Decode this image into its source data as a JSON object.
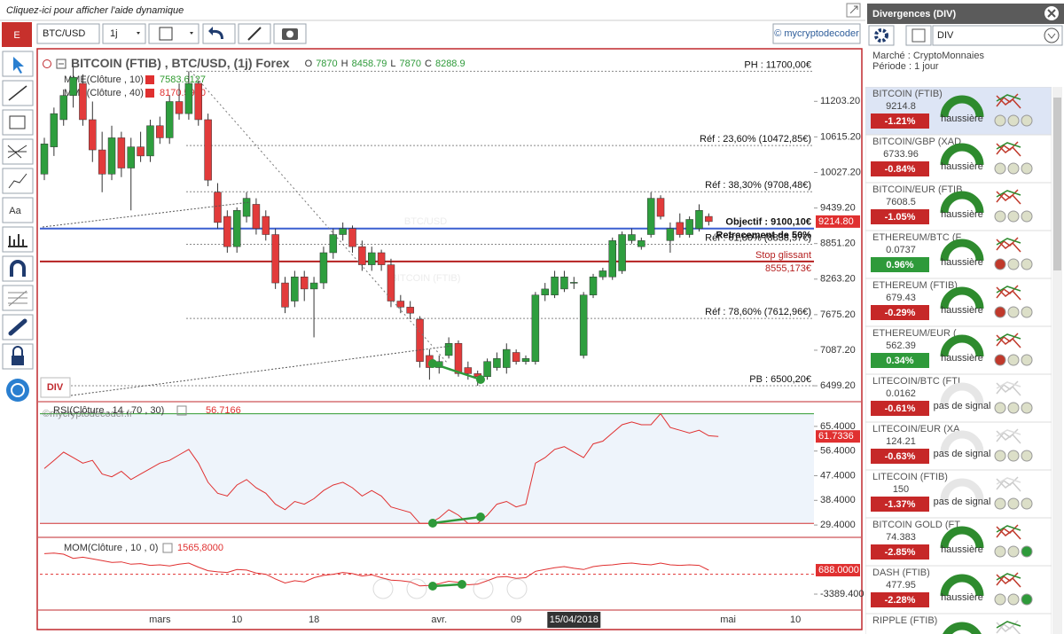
{
  "help_link": "Cliquez-ici pour afficher l'aide dynamique",
  "toolbar": {
    "logo": "E",
    "symbol": "BTC/USD",
    "period": "1j",
    "brand": "© mycryptodecoder"
  },
  "left_tools": {
    "text_tool": "Aa"
  },
  "price_chart": {
    "title": "BITCOIN (FTIB) , BTC/USD, (1j) Forex",
    "ohlc": [
      "O",
      "7870",
      "H",
      "8458.79",
      "L",
      "7870",
      "C",
      "8288.9"
    ],
    "indicators": [
      {
        "name": "MME(Clôture , 10)",
        "value": "7583.6127",
        "color": "#2e9a2e"
      },
      {
        "name": "MME(Clôture , 40)",
        "value": "8170.5900",
        "color": "#e03030"
      }
    ],
    "watermark": "BTC/USD",
    "watermark_sub": "BITCOIN (FTIB)",
    "copyright": "©mycryptodecoder.fr",
    "div_button": "DIV",
    "categories": [
      null,
      null,
      null,
      null,
      null,
      null,
      null,
      null,
      null,
      null,
      null,
      null,
      "mars",
      null,
      null,
      null,
      null,
      null,
      null,
      null,
      "10",
      null,
      null,
      null,
      null,
      null,
      null,
      null,
      "18",
      null,
      null,
      null,
      null,
      null,
      null,
      null,
      null,
      null,
      null,
      null,
      null,
      "avr.",
      null,
      null,
      null,
      null,
      null,
      null,
      null,
      "09",
      null,
      null,
      null,
      null,
      null,
      "15/04/2018",
      null,
      null,
      null,
      null,
      null,
      null,
      null,
      null,
      null,
      null,
      null,
      null,
      null,
      null,
      null,
      "mai",
      null,
      null,
      null,
      null,
      null,
      null,
      "10",
      null,
      null
    ],
    "candles": [
      [
        10000,
        10600,
        9900,
        10500
      ],
      [
        10450,
        11100,
        10300,
        11000
      ],
      [
        10900,
        11400,
        10800,
        11300
      ],
      [
        11300,
        11800,
        11100,
        11600
      ],
      [
        11500,
        11650,
        10800,
        10900
      ],
      [
        10900,
        11200,
        10200,
        10400
      ],
      [
        10400,
        10700,
        9700,
        10000
      ],
      [
        10000,
        10800,
        9900,
        10600
      ],
      [
        10600,
        10700,
        9950,
        10100
      ],
      [
        10100,
        10600,
        9400,
        10450
      ],
      [
        10450,
        10700,
        10200,
        10300
      ],
      [
        10300,
        10900,
        10200,
        10800
      ],
      [
        10800,
        10950,
        10500,
        10600
      ],
      [
        10600,
        11300,
        10500,
        11200
      ],
      [
        11200,
        11500,
        10900,
        11000
      ],
      [
        11000,
        11700,
        10900,
        11500
      ],
      [
        11500,
        11550,
        10800,
        10900
      ],
      [
        10900,
        11000,
        9800,
        9900
      ],
      [
        9700,
        9850,
        9100,
        9200
      ],
      [
        9300,
        9400,
        8700,
        8800
      ],
      [
        8800,
        9450,
        8700,
        9400
      ],
      [
        9300,
        9700,
        9200,
        9600
      ],
      [
        9500,
        9600,
        9000,
        9100
      ],
      [
        9300,
        9400,
        8900,
        9000
      ],
      [
        9000,
        9100,
        8100,
        8200
      ],
      [
        8200,
        8300,
        7700,
        7800
      ],
      [
        7900,
        8400,
        7800,
        8300
      ],
      [
        8300,
        8400,
        7900,
        8100
      ],
      [
        8100,
        8300,
        7300,
        8200
      ],
      [
        8200,
        8800,
        8100,
        8700
      ],
      [
        8700,
        9100,
        8600,
        9000
      ],
      [
        9000,
        9200,
        8900,
        9100
      ],
      [
        9100,
        9150,
        8700,
        8800
      ],
      [
        8800,
        8900,
        8400,
        8500
      ],
      [
        8500,
        8800,
        8400,
        8700
      ],
      [
        8700,
        8750,
        8400,
        8500
      ],
      [
        8500,
        8600,
        7800,
        7900
      ],
      [
        7900,
        8000,
        7700,
        7800
      ],
      [
        7800,
        7900,
        7600,
        7700
      ],
      [
        7600,
        7650,
        6800,
        6900
      ],
      [
        7000,
        7100,
        6600,
        6800
      ],
      [
        6800,
        7000,
        6700,
        6900
      ],
      [
        7000,
        7300,
        6950,
        7200
      ],
      [
        7200,
        7250,
        6650,
        6700
      ],
      [
        6800,
        6900,
        6600,
        6700
      ],
      [
        6700,
        6750,
        6500,
        6650
      ],
      [
        6650,
        6950,
        6600,
        6900
      ],
      [
        6800,
        7050,
        6750,
        6950
      ],
      [
        6800,
        7200,
        6700,
        7100
      ],
      [
        7050,
        7100,
        6850,
        6900
      ],
      [
        6900,
        7000,
        6850,
        6950
      ],
      [
        6900,
        8050,
        6850,
        8000
      ],
      [
        8000,
        8200,
        7900,
        8100
      ],
      [
        8000,
        8400,
        7950,
        8300
      ],
      [
        8100,
        8400,
        8050,
        8300
      ],
      [
        8200,
        8300,
        8100,
        8210
      ],
      [
        7000,
        8050,
        6950,
        8000
      ],
      [
        8000,
        8350,
        7950,
        8300
      ],
      [
        8300,
        8450,
        8250,
        8400
      ],
      [
        8300,
        8950,
        8250,
        8900
      ],
      [
        8400,
        9050,
        8350,
        9000
      ],
      [
        8900,
        9100,
        8850,
        9000
      ],
      [
        8800,
        8950,
        8750,
        8900
      ],
      [
        9000,
        9700,
        8950,
        9600
      ],
      [
        9600,
        9650,
        9250,
        9300
      ],
      [
        8900,
        9200,
        8700,
        9100
      ],
      [
        9200,
        9350,
        8950,
        9000
      ],
      [
        9000,
        9300,
        8950,
        9250
      ],
      [
        9100,
        9500,
        9050,
        9400
      ],
      [
        9300,
        9350,
        9150,
        9214.8
      ],
      null,
      null,
      null,
      null,
      null,
      null,
      null,
      null,
      null,
      null,
      null
    ],
    "up_color": "#2e9e3e",
    "down_color": "#e23b3b",
    "ylim": [
      6280,
      11970
    ],
    "yticks": [
      {
        "value": 6499.2,
        "label": "6499.20"
      },
      {
        "value": 7087.2,
        "label": "7087.20"
      },
      {
        "value": 7675.2,
        "label": "7675.20"
      },
      {
        "value": 8263.2,
        "label": "8263.20"
      },
      {
        "value": 8851.2,
        "label": "8851.20"
      },
      {
        "value": 9439.2,
        "label": "9439.20"
      },
      {
        "value": 10027.2,
        "label": "10027.20"
      },
      {
        "value": 10615.2,
        "label": "10615.20"
      },
      {
        "value": 11203.2,
        "label": "11203.20"
      }
    ],
    "last_price_label": "9214.80",
    "levels": [
      {
        "value": 11700,
        "label": "PH : 11700,00€"
      },
      {
        "value": 10472.85,
        "label": "Réf : 23,60% (10472,85€)"
      },
      {
        "value": 9708.48,
        "label": "Réf : 38,30% (9708,48€)"
      },
      {
        "value": 9100.1,
        "label": "Objectif : 9100,10€",
        "sub": "Retracement de 50%",
        "color": "#3a5fd0"
      },
      {
        "value": 8838.57,
        "label": "Réf : 61,80% (8838,57€)"
      },
      {
        "value": 8555.173,
        "label": "Stop glissant",
        "sub": "8555,173€",
        "color": "#b52020"
      },
      {
        "value": 7612.96,
        "label": "Réf : 78,60% (7612,96€)"
      },
      {
        "value": 6500.2,
        "label": "PB : 6500,20€"
      }
    ]
  },
  "rsi": {
    "title": "RSI(Clôture , 14 , 70 , 30)",
    "value": "56.7166",
    "color": "#e03030",
    "values": [
      50,
      53,
      56,
      54,
      52,
      53,
      48,
      47,
      49,
      46,
      48,
      50,
      52,
      53,
      55,
      57,
      52,
      45,
      41,
      40,
      44,
      46,
      43,
      41,
      37,
      35,
      38,
      37,
      39,
      42,
      44,
      45,
      43,
      40,
      42,
      40,
      36,
      35,
      34,
      30,
      30,
      32,
      35,
      33,
      30,
      30,
      33,
      37,
      38,
      36,
      37,
      52,
      54,
      57,
      58,
      56,
      54,
      59,
      60,
      63,
      66,
      67,
      66,
      66,
      70,
      65,
      64,
      63,
      64,
      62,
      61.7336,
      null,
      null,
      null,
      null,
      null,
      null,
      null,
      null,
      null,
      null
    ],
    "ylim": [
      26.2,
      71.5
    ],
    "yticks": [
      {
        "value": 29.4,
        "label": "29.4000"
      },
      {
        "value": 38.4,
        "label": "38.4000"
      },
      {
        "value": 47.4,
        "label": "47.4000"
      },
      {
        "value": 56.4,
        "label": "56.4000"
      },
      {
        "value": 65.4,
        "label": "65.4000"
      }
    ],
    "levels": [
      {
        "value": 70,
        "color": "#2e9a2e"
      },
      {
        "value": 30,
        "color": "#d03030"
      }
    ]
  },
  "mom": {
    "title": "MOM(Clôture , 10 , 0)",
    "value": "1565,8000",
    "color": "#e03030",
    "values": [
      3500,
      3600,
      3400,
      2700,
      2900,
      2600,
      2300,
      2000,
      2100,
      1700,
      1800,
      1500,
      1600,
      1400,
      1700,
      1900,
      1200,
      600,
      400,
      300,
      800,
      700,
      200,
      0,
      -800,
      -1500,
      -1100,
      -1300,
      -600,
      -200,
      0,
      300,
      100,
      -300,
      -100,
      -600,
      -1000,
      -1100,
      -1300,
      -2000,
      -1900,
      -1600,
      -1200,
      -1400,
      -1800,
      -1700,
      -1100,
      -500,
      -400,
      -700,
      -600,
      500,
      800,
      1100,
      1300,
      1000,
      800,
      1300,
      1500,
      1600,
      1800,
      1900,
      1700,
      1600,
      1900,
      1600,
      1500,
      1600,
      1500,
      688,
      null,
      null,
      null,
      null,
      null,
      null,
      null,
      null,
      null,
      null,
      null
    ],
    "last_label": "688.0000",
    "ylim": [
      -5650,
      5370
    ],
    "yticks": [
      {
        "value": -3389.4,
        "label": "-3389.400"
      }
    ]
  },
  "side_panel": {
    "title": "Divergences (DIV)",
    "search": "DIV",
    "market": "Marché : CryptoMonnaies",
    "period": "Période : 1 jour",
    "items": [
      {
        "name": "BITCOIN (FTIB)",
        "price": "9214.8",
        "change": "-1.21%",
        "change_color": "#c62828",
        "status": "haussière",
        "gauge_color": "#2e8b2e",
        "dots": [
          "#dcdfc8",
          "#dcdfc8",
          "#dcdfc8"
        ]
      },
      {
        "name": "BITCOIN/GBP (XAD",
        "price": "6733.96",
        "change": "-0.84%",
        "change_color": "#c62828",
        "status": "haussière",
        "gauge_color": "#2e8b2e",
        "dots": [
          "#dcdfc8",
          "#dcdfc8",
          "#dcdfc8"
        ]
      },
      {
        "name": "BITCOIN/EUR (FTIB",
        "price": "7608.5",
        "change": "-1.05%",
        "change_color": "#c62828",
        "status": "haussière",
        "gauge_color": "#2e8b2e",
        "dots": [
          "#dcdfc8",
          "#dcdfc8",
          "#dcdfc8"
        ]
      },
      {
        "name": "ETHEREUM/BTC (F",
        "price": "0.0737",
        "change": "0.96%",
        "change_color": "#2e9a3a",
        "status": "haussière",
        "gauge_color": "#2e8b2e",
        "dots": [
          "#c0392b",
          "#dcdfc8",
          "#dcdfc8"
        ]
      },
      {
        "name": "ETHEREUM (FTIB)",
        "price": "679.43",
        "change": "-0.29%",
        "change_color": "#c62828",
        "status": "haussière",
        "gauge_color": "#2e8b2e",
        "dots": [
          "#c0392b",
          "#dcdfc8",
          "#dcdfc8"
        ]
      },
      {
        "name": "ETHEREUM/EUR (",
        "price": "562.39",
        "change": "0.34%",
        "change_color": "#2e9a3a",
        "status": "haussière",
        "gauge_color": "#2e8b2e",
        "dots": [
          "#c0392b",
          "#dcdfc8",
          "#dcdfc8"
        ]
      },
      {
        "name": "LITECOIN/BTC (FTI",
        "price": "0.0162",
        "change": "-0.61%",
        "change_color": "#c62828",
        "status": "pas de signal",
        "gauge_color": "#e6e6e6",
        "dots": [
          "#dcdfc8",
          "#dcdfc8",
          "#dcdfc8"
        ]
      },
      {
        "name": "LITECOIN/EUR (XA",
        "price": "124.21",
        "change": "-0.63%",
        "change_color": "#c62828",
        "status": "pas de signal",
        "gauge_color": "#e6e6e6",
        "dots": [
          "#dcdfc8",
          "#dcdfc8",
          "#dcdfc8"
        ]
      },
      {
        "name": "LITECOIN (FTIB)",
        "price": "150",
        "change": "-1.37%",
        "change_color": "#c62828",
        "status": "pas de signal",
        "gauge_color": "#e6e6e6",
        "dots": [
          "#dcdfc8",
          "#dcdfc8",
          "#dcdfc8"
        ]
      },
      {
        "name": "BITCOIN GOLD (FT",
        "price": "74.383",
        "change": "-2.85%",
        "change_color": "#c62828",
        "status": "haussière",
        "gauge_color": "#2e8b2e",
        "dots": [
          "#dcdfc8",
          "#dcdfc8",
          "#2e9a3a"
        ]
      },
      {
        "name": "DASH (FTIB)",
        "price": "477.95",
        "change": "-2.28%",
        "change_color": "#c62828",
        "status": "haussière",
        "gauge_color": "#2e8b2e",
        "dots": [
          "#dcdfc8",
          "#dcdfc8",
          "#2e9a3a"
        ]
      },
      {
        "name": "RIPPLE (FTIB)",
        "price": "",
        "change": "",
        "change_color": "#c62828",
        "status": "",
        "gauge_color": "#2e8b2e",
        "dots": []
      }
    ]
  }
}
